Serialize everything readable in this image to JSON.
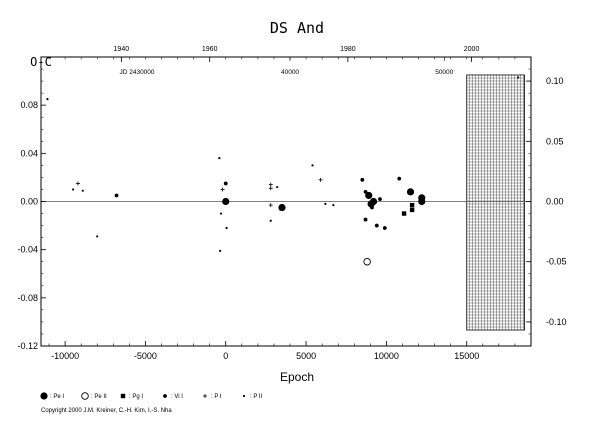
{
  "chart_data": {
    "type": "scatter",
    "title": "DS And",
    "ylabel": "O-C",
    "xlabel": "Epoch",
    "xlim": [
      -11500,
      19000
    ],
    "ylim": [
      -0.12,
      0.12
    ],
    "x_ticks": [
      "-10000",
      "-5000",
      "0",
      "5000",
      "10000",
      "15000"
    ],
    "x_tick_values": [
      -10000,
      -5000,
      0,
      5000,
      10000,
      15000
    ],
    "y_ticks_left": [
      "-0.12",
      "-0.08",
      "-0.04",
      "0.00",
      "0.04",
      "0.08"
    ],
    "y_tick_values_left": [
      -0.12,
      -0.08,
      -0.04,
      0.0,
      0.04,
      0.08
    ],
    "y_ticks_right": [
      "-0.10",
      "-0.05",
      "0.00",
      "0.05",
      "0.10"
    ],
    "y_tick_values_right": [
      -0.1,
      -0.05,
      0.0,
      0.05,
      0.1
    ],
    "top_year_ticks": [
      "1940",
      "1960",
      "1980",
      "2000"
    ],
    "top_year_epochs": [
      -6500,
      -1000,
      7600,
      15300
    ],
    "jd_label": "JD 2430000",
    "jd_label_epoch": -6500,
    "top_jd_ticks": [
      "40000",
      "50000"
    ],
    "top_jd_epochs": [
      4000,
      13600
    ],
    "future_region": {
      "from": 15000,
      "to": 18600
    },
    "grid": false,
    "legend_position": "bottom",
    "legend": [
      {
        "symbol": "filled-circle-large",
        "label": ": Pe I"
      },
      {
        "symbol": "open-circle",
        "label": ": Pe II"
      },
      {
        "symbol": "filled-square",
        "label": ": Pg I"
      },
      {
        "symbol": "filled-circle-small",
        "label": ": Vi I"
      },
      {
        "symbol": "plus",
        "label": ": P I"
      },
      {
        "symbol": "dot",
        "label": ": P II"
      }
    ],
    "series": [
      {
        "symbol": "filled-circle-large",
        "points": [
          {
            "x": 0,
            "y": 0.0
          },
          {
            "x": 3500,
            "y": -0.005
          },
          {
            "x": 8900,
            "y": 0.005
          },
          {
            "x": 9200,
            "y": 0.0
          },
          {
            "x": 9050,
            "y": -0.002
          },
          {
            "x": 11500,
            "y": 0.008
          },
          {
            "x": 12200,
            "y": 0.003
          },
          {
            "x": 12200,
            "y": 0.0
          }
        ]
      },
      {
        "symbol": "open-circle",
        "points": [
          {
            "x": 8800,
            "y": -0.05
          }
        ]
      },
      {
        "symbol": "filled-square",
        "points": [
          {
            "x": 11100,
            "y": -0.01
          },
          {
            "x": 11600,
            "y": -0.003
          },
          {
            "x": 11600,
            "y": -0.007
          }
        ]
      },
      {
        "symbol": "filled-circle-small",
        "points": [
          {
            "x": -6800,
            "y": 0.005
          },
          {
            "x": 0,
            "y": 0.015
          },
          {
            "x": 8500,
            "y": 0.018
          },
          {
            "x": 8700,
            "y": -0.015
          },
          {
            "x": 9100,
            "y": -0.005
          },
          {
            "x": 9400,
            "y": -0.02
          },
          {
            "x": 9900,
            "y": -0.022
          },
          {
            "x": 9600,
            "y": 0.002
          },
          {
            "x": 10800,
            "y": 0.019
          },
          {
            "x": 8700,
            "y": 0.008
          }
        ]
      },
      {
        "symbol": "plus",
        "points": [
          {
            "x": -9200,
            "y": 0.015
          },
          {
            "x": 2800,
            "y": 0.014
          },
          {
            "x": 2800,
            "y": 0.011
          },
          {
            "x": 2800,
            "y": -0.003
          },
          {
            "x": 5900,
            "y": 0.018
          },
          {
            "x": -200,
            "y": 0.01
          }
        ]
      },
      {
        "symbol": "dot",
        "points": [
          {
            "x": -11100,
            "y": 0.085
          },
          {
            "x": -9500,
            "y": 0.01
          },
          {
            "x": -8900,
            "y": 0.009
          },
          {
            "x": -8000,
            "y": -0.029
          },
          {
            "x": -400,
            "y": 0.036
          },
          {
            "x": -350,
            "y": -0.041
          },
          {
            "x": -300,
            "y": -0.01
          },
          {
            "x": 50,
            "y": -0.022
          },
          {
            "x": 2800,
            "y": -0.016
          },
          {
            "x": 3200,
            "y": 0.012
          },
          {
            "x": 5400,
            "y": 0.03
          },
          {
            "x": 6200,
            "y": -0.002
          },
          {
            "x": 6700,
            "y": -0.003
          },
          {
            "x": 18200,
            "y": 0.103
          }
        ]
      }
    ]
  },
  "copyright": "Copyright 2000 J.M. Kreiner, C.-H. Kim, I.-S. Nha"
}
